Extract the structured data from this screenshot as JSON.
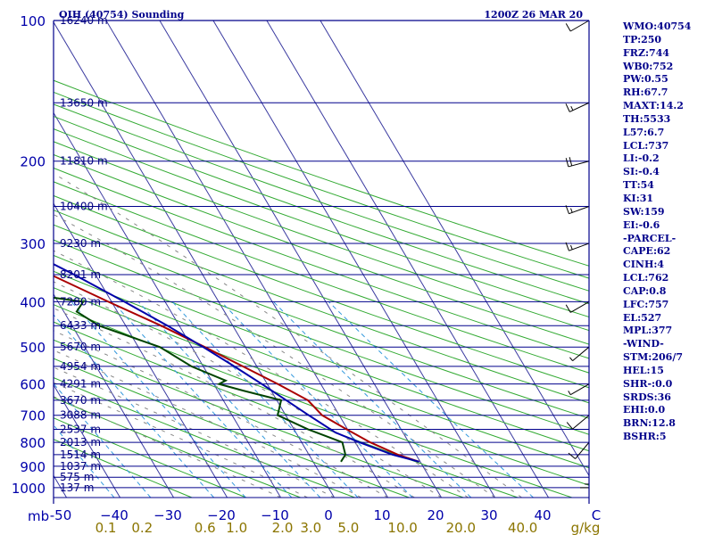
{
  "title_left": "OIH (40754) Sounding",
  "title_right": "1200Z 26 MAR 20",
  "colors": {
    "isobar": "#00008b",
    "isotherm": "#3a3aa0",
    "dry_adiabat": "#33aa33",
    "moist_adiabat": "#888888",
    "mixing_ratio": "#3399dd",
    "temperature": "#aa0000",
    "dewpoint": "#004400",
    "parcel": "#0000aa",
    "params_text": "#00008b"
  },
  "params": [
    "WMO:40754",
    "TP:250",
    "FRZ:744",
    "WB0:752",
    "PW:0.55",
    "RH:67.7",
    "MAXT:14.2",
    "TH:5533",
    "L57:6.7",
    "LCL:737",
    "LI:-0.2",
    "SI:-0.4",
    "TT:54",
    "KI:31",
    "SW:159",
    "EI:-0.6",
    "-PARCEL-",
    "CAPE:62",
    "CINH:4",
    "LCL:762",
    "CAP:0.8",
    "LFC:757",
    "EL:527",
    "MPL:377",
    "-WIND-",
    "STM:206/7",
    "HEL:15",
    "SHR-:0.0",
    "SRDS:36",
    "EHI:0.0",
    "BRN:12.8",
    "BSHR:5"
  ],
  "chart_data": {
    "type": "skew-t",
    "title": "OIH (40754) Sounding",
    "valid_time": "1200Z 26 MAR 20",
    "y_unit_label": "mb",
    "x_unit_label": "g/kg",
    "pressure_range": [
      1000,
      100
    ],
    "temp_range": [
      -50,
      50
    ],
    "pressure_labels": [
      100,
      200,
      300,
      400,
      500,
      600,
      700,
      800,
      900,
      1000
    ],
    "temp_ticks": [
      -50,
      -40,
      -30,
      -20,
      -10,
      0,
      10,
      20,
      30,
      40,
      50
    ],
    "temp_tick_labels": [
      "-50",
      "−40",
      "−30",
      "−20",
      "−10",
      "0",
      "10",
      "20",
      "30",
      "40",
      "C"
    ],
    "mixing_ratio_labels": [
      {
        "label": "0.1",
        "w": 0.1
      },
      {
        "label": "0.2",
        "w": 0.2
      },
      {
        "label": "0.6",
        "w": 0.6
      },
      {
        "label": "1.0",
        "w": 1.0
      },
      {
        "label": "2.0",
        "w": 2.0
      },
      {
        "label": "3.0",
        "w": 3.0
      },
      {
        "label": "5.0",
        "w": 5.0
      },
      {
        "label": "10.0",
        "w": 10.0
      },
      {
        "label": "20.0",
        "w": 20.0
      },
      {
        "label": "40.0",
        "w": 40.0
      }
    ],
    "heights": [
      {
        "p": 100,
        "label": "16240 m"
      },
      {
        "p": 150,
        "label": "13650 m"
      },
      {
        "p": 200,
        "label": "11810 m"
      },
      {
        "p": 250,
        "label": "10400 m"
      },
      {
        "p": 300,
        "label": "9230 m"
      },
      {
        "p": 350,
        "label": "8201 m"
      },
      {
        "p": 400,
        "label": "7280 m"
      },
      {
        "p": 450,
        "label": "6433 m"
      },
      {
        "p": 500,
        "label": "5670 m"
      },
      {
        "p": 550,
        "label": "4954 m"
      },
      {
        "p": 600,
        "label": "4291 m"
      },
      {
        "p": 650,
        "label": "3670 m"
      },
      {
        "p": 700,
        "label": "3088 m"
      },
      {
        "p": 750,
        "label": "2537 m"
      },
      {
        "p": 800,
        "label": "2013 m"
      },
      {
        "p": 850,
        "label": "1514 m"
      },
      {
        "p": 900,
        "label": "1037 m"
      },
      {
        "p": 950,
        "label": "575 m"
      },
      {
        "p": 1000,
        "label": "137 m"
      }
    ],
    "series": [
      {
        "name": "Temperature",
        "points": [
          [
            880,
            19.8
          ],
          [
            850,
            16.6
          ],
          [
            800,
            12.8
          ],
          [
            750,
            9.8
          ],
          [
            700,
            6.8
          ],
          [
            650,
            5.8
          ],
          [
            600,
            2.0
          ],
          [
            550,
            -2.6
          ],
          [
            500,
            -7.6
          ],
          [
            450,
            -13.4
          ],
          [
            400,
            -20.6
          ],
          [
            350,
            -28.4
          ],
          [
            300,
            -38.0
          ],
          [
            250,
            -50.0
          ],
          [
            225,
            -49.3
          ],
          [
            200,
            -41.5
          ],
          [
            175,
            -33.8
          ],
          [
            150,
            -26.0
          ],
          [
            130,
            -20.0
          ],
          [
            115,
            -14.0
          ],
          [
            100,
            -6.6
          ]
        ]
      },
      {
        "name": "Dewpoint",
        "points": [
          [
            880,
            5.2
          ],
          [
            850,
            6.8
          ],
          [
            800,
            7.6
          ],
          [
            750,
            2.6
          ],
          [
            700,
            -1.5
          ],
          [
            650,
            0.8
          ],
          [
            620,
            -5.2
          ],
          [
            600,
            -9.0
          ],
          [
            590,
            -7.4
          ],
          [
            550,
            -12.2
          ],
          [
            500,
            -16.0
          ],
          [
            450,
            -25.0
          ],
          [
            420,
            -27.6
          ],
          [
            400,
            -25.3
          ],
          [
            385,
            -35.1
          ],
          [
            360,
            -35.3
          ],
          [
            350,
            -42.0
          ],
          [
            300,
            -51.0
          ],
          [
            250,
            -62.0
          ],
          [
            232,
            -67.0
          ],
          [
            200,
            -67.0
          ],
          [
            170,
            -69.0
          ],
          [
            150,
            -73.0
          ],
          [
            120,
            -80.0
          ],
          [
            100,
            -85.0
          ]
        ]
      },
      {
        "name": "Parcel",
        "points": [
          [
            880,
            19.8
          ],
          [
            850,
            15.6
          ],
          [
            800,
            10.8
          ],
          [
            762,
            7.4
          ],
          [
            700,
            4.3
          ],
          [
            600,
            -1.0
          ],
          [
            550,
            -4.2
          ],
          [
            500,
            -7.9
          ],
          [
            450,
            -12.2
          ],
          [
            400,
            -17.6
          ],
          [
            350,
            -24.0
          ],
          [
            300,
            -32.0
          ],
          [
            250,
            -42.0
          ],
          [
            200,
            -55.0
          ],
          [
            150,
            -72.0
          ],
          [
            120,
            -85.0
          ],
          [
            100,
            -95.0
          ]
        ]
      }
    ],
    "winds": [
      {
        "p": 900,
        "dir": 180,
        "spd": 15
      },
      {
        "p": 800,
        "dir": 220,
        "spd": 10
      },
      {
        "p": 700,
        "dir": 230,
        "spd": 10
      },
      {
        "p": 600,
        "dir": 240,
        "spd": 5
      },
      {
        "p": 500,
        "dir": 230,
        "spd": 5
      },
      {
        "p": 400,
        "dir": 240,
        "spd": 10
      },
      {
        "p": 300,
        "dir": 250,
        "spd": 15
      },
      {
        "p": 250,
        "dir": 250,
        "spd": 15
      },
      {
        "p": 200,
        "dir": 255,
        "spd": 20
      },
      {
        "p": 150,
        "dir": 245,
        "spd": 15
      },
      {
        "p": 100,
        "dir": 240,
        "spd": 10
      }
    ]
  }
}
